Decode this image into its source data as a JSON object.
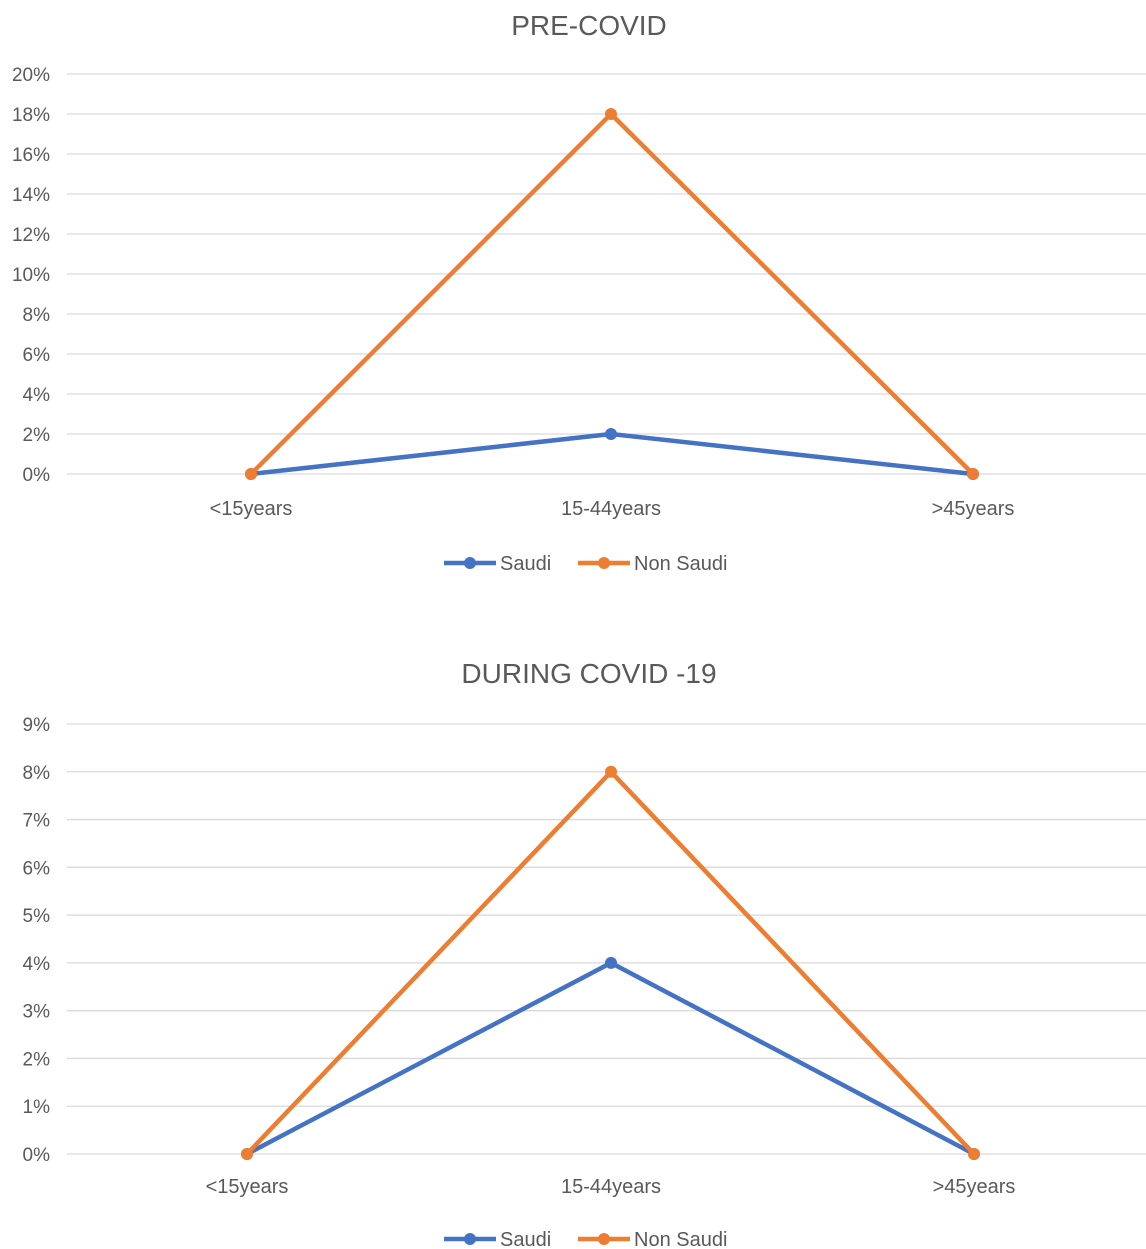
{
  "chart_data": [
    {
      "type": "line",
      "title": "PRE-COVID",
      "xlabel": "",
      "ylabel": "",
      "categories": [
        "<15years",
        "15-44years",
        ">45years"
      ],
      "series": [
        {
          "name": "Saudi",
          "values": [
            0,
            2,
            0
          ],
          "color": "#4472c4"
        },
        {
          "name": "Non Saudi",
          "values": [
            0,
            18,
            0
          ],
          "color": "#ed7d31"
        }
      ],
      "ylim": [
        0,
        20
      ],
      "yticks": [
        "0%",
        "2%",
        "4%",
        "6%",
        "8%",
        "10%",
        "12%",
        "14%",
        "16%",
        "18%",
        "20%"
      ],
      "grid": true,
      "legend_position": "bottom"
    },
    {
      "type": "line",
      "title": "DURING COVID -19",
      "xlabel": "",
      "ylabel": "",
      "categories": [
        "<15years",
        "15-44years",
        ">45years"
      ],
      "series": [
        {
          "name": "Saudi",
          "values": [
            0,
            4,
            0
          ],
          "color": "#4472c4"
        },
        {
          "name": "Non Saudi",
          "values": [
            0,
            8,
            0
          ],
          "color": "#ed7d31"
        }
      ],
      "ylim": [
        0,
        9
      ],
      "yticks": [
        "0%",
        "1%",
        "2%",
        "3%",
        "4%",
        "5%",
        "6%",
        "7%",
        "8%",
        "9%"
      ],
      "grid": true,
      "legend_position": "bottom"
    }
  ]
}
